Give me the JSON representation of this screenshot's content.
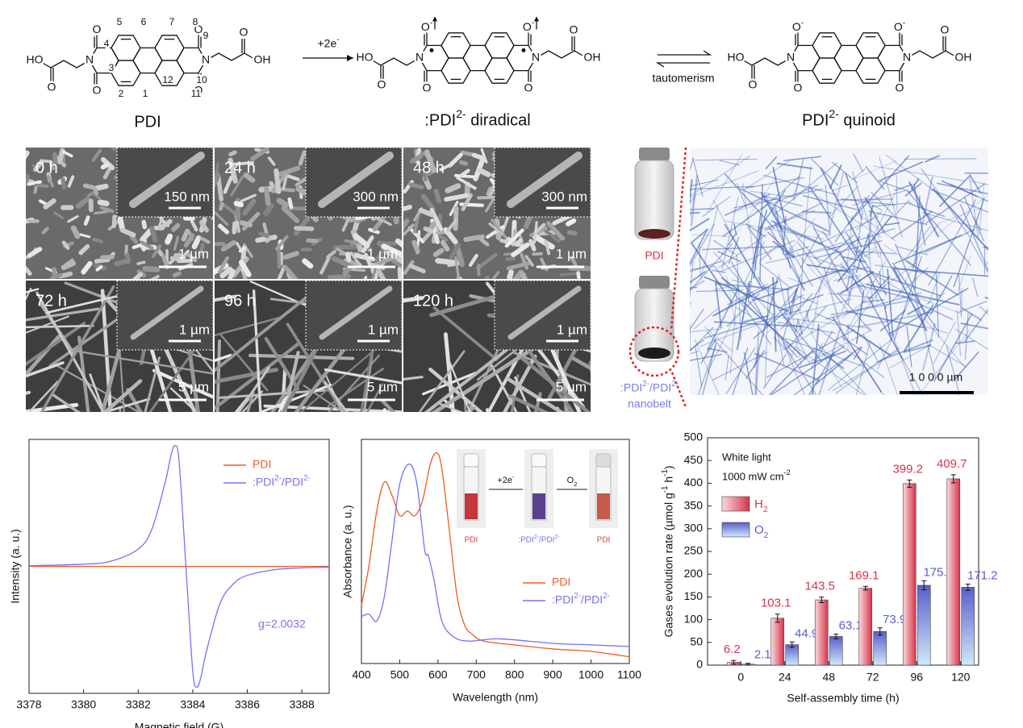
{
  "scheme": {
    "molecules": [
      {
        "label": "PDI",
        "atoms": [
          "O",
          "O",
          "N",
          "N",
          "O",
          "O",
          "HO",
          "O",
          "OH",
          "O"
        ],
        "numbers": [
          "1",
          "2",
          "3",
          "4",
          "5",
          "6",
          "7",
          "8",
          "9",
          "10",
          "11",
          "12"
        ]
      },
      {
        "label": ":PDI2- diradical",
        "atoms": [
          "O-",
          "O",
          "N",
          "N",
          "O-",
          "O",
          "HO",
          "O",
          "OH",
          "O"
        ]
      },
      {
        "label": "PDI2- quinoid",
        "atoms": [
          "O-",
          "O",
          "N",
          "N",
          "O-",
          "O",
          "HO",
          "O",
          "OH",
          "O"
        ]
      }
    ],
    "reaction": "+2e-",
    "equilibrium": "tautomerism"
  },
  "sem": {
    "panels": [
      {
        "time": "0 h",
        "inset_scale": "150 nm",
        "scale": "1 µm"
      },
      {
        "time": "24 h",
        "inset_scale": "300 nm",
        "scale": "1 µm"
      },
      {
        "time": "48 h",
        "inset_scale": "300 nm",
        "scale": "1 µm"
      },
      {
        "time": "72 h",
        "inset_scale": "1 µm",
        "scale": "5 µm"
      },
      {
        "time": "96 h",
        "inset_scale": "1 µm",
        "scale": "5 µm"
      },
      {
        "time": "120 h",
        "inset_scale": "1 µm",
        "scale": "5 µm"
      }
    ]
  },
  "photo": {
    "vial_top": "PDI",
    "vial_bottom": ":PDI2-/PDI2-",
    "vial_bottom_2": "nanobelt",
    "scale": "1 0 0 0 µm"
  },
  "chart_data": [
    {
      "type": "line",
      "xlabel": "Magnetic field (G)",
      "ylabel": "Intensity (a. u.)",
      "annotation": "g=2.0032",
      "x": [
        3378,
        3380,
        3381,
        3382,
        3382.5,
        3383,
        3383.2,
        3383.35,
        3383.5,
        3383.75,
        3384,
        3384.15,
        3384.3,
        3384.5,
        3385,
        3385.5,
        3386,
        3387,
        3388,
        3389
      ],
      "xlim": [
        3378,
        3389
      ],
      "xticks": [
        3378,
        3380,
        3382,
        3384,
        3386,
        3388
      ],
      "ylim": [
        -1,
        1
      ],
      "series": [
        {
          "name": "PDI",
          "color": "#f05a24",
          "values": [
            0,
            0,
            0,
            0,
            0,
            0,
            0,
            0,
            0,
            0,
            0,
            0,
            0,
            0,
            0,
            0,
            0,
            0,
            0,
            0
          ]
        },
        {
          "name": ":PDI2-/PDI2-",
          "color": "#7373f0",
          "values": [
            0.005,
            0.017,
            0.041,
            0.136,
            0.291,
            0.671,
            0.873,
            0.95,
            0.826,
            0,
            -0.826,
            -0.95,
            -0.873,
            -0.671,
            -0.291,
            -0.136,
            -0.071,
            -0.026,
            -0.012,
            -0.006
          ]
        }
      ]
    },
    {
      "type": "line",
      "xlabel": "Wavelength (nm)",
      "ylabel": "Absorbance (a. u.)",
      "xlim": [
        400,
        1100
      ],
      "xticks": [
        400,
        500,
        600,
        700,
        800,
        900,
        1000,
        1100
      ],
      "ylim": [
        0,
        1
      ],
      "inset": {
        "step1": "+2e-",
        "step2": "O2",
        "vials": [
          "PDI",
          ":PDI2-/PDI2-",
          "PDI"
        ]
      },
      "series": [
        {
          "name": "PDI",
          "color": "#f05a24",
          "x": [
            400,
            420,
            440,
            460,
            480,
            500,
            520,
            540,
            560,
            580,
            597,
            610,
            630,
            650,
            670,
            690,
            720,
            800,
            900,
            1000,
            1100
          ],
          "values": [
            0.26,
            0.44,
            0.68,
            0.81,
            0.75,
            0.66,
            0.68,
            0.66,
            0.73,
            0.89,
            0.94,
            0.87,
            0.59,
            0.3,
            0.17,
            0.13,
            0.1,
            0.083,
            0.065,
            0.054,
            0.03
          ]
        },
        {
          "name": ":PDI2-/PDI2-",
          "color": "#7373f0",
          "x": [
            400,
            420,
            440,
            460,
            480,
            500,
            525,
            545,
            565,
            575,
            590,
            610,
            640,
            680,
            760,
            900,
            1000,
            1100
          ],
          "values": [
            0.21,
            0.22,
            0.19,
            0.3,
            0.55,
            0.8,
            0.89,
            0.8,
            0.51,
            0.48,
            0.37,
            0.19,
            0.12,
            0.1,
            0.11,
            0.09,
            0.083,
            0.076
          ]
        }
      ]
    },
    {
      "type": "bar",
      "xlabel": "Self-assembly time (h)",
      "ylabel": "Gases evolution rate (µmol g-1 h-1)",
      "annotations": [
        "White light",
        "1000 mW cm-2"
      ],
      "categories": [
        "0",
        "24",
        "48",
        "72",
        "96",
        "120"
      ],
      "ylim": [
        0,
        500
      ],
      "yticks": [
        0,
        50,
        100,
        150,
        200,
        250,
        300,
        350,
        400,
        450,
        500
      ],
      "series": [
        {
          "name": "H2",
          "color": "#d6344d",
          "values": [
            6.2,
            103.1,
            143.5,
            169.1,
            399.2,
            409.7
          ],
          "errors": [
            4,
            9,
            6,
            4,
            8,
            9
          ]
        },
        {
          "name": "O2",
          "color": "#5a5fc8",
          "values": [
            2.1,
            44.9,
            63.1,
            73.9,
            175.6,
            171.2
          ],
          "errors": [
            2,
            6,
            5,
            8,
            10,
            7
          ]
        }
      ]
    }
  ]
}
